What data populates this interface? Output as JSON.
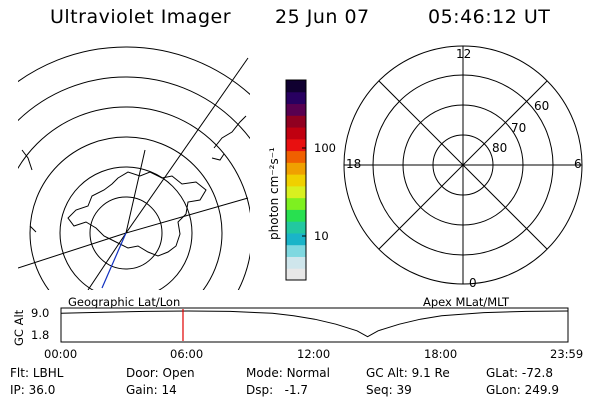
{
  "header": {
    "title": "Ultraviolet Imager",
    "date": "25 Jun 07",
    "time": "05:46:12 UT"
  },
  "colorbar": {
    "unit_label": "photon cm⁻²s⁻¹",
    "tick_100": "100",
    "tick_10": "10",
    "colors": [
      "#e8e8e8",
      "#cfe6ec",
      "#7fd8e0",
      "#1ab4c8",
      "#22c8a0",
      "#28e050",
      "#7ef020",
      "#d8f020",
      "#f0d000",
      "#f0a000",
      "#f06000",
      "#e81010",
      "#c00010",
      "#900020",
      "#580050",
      "#280060",
      "#100030"
    ]
  },
  "left_panel": {
    "label": "Geographic Lat/Lon"
  },
  "right_panel": {
    "label": "Apex  MLat/MLT",
    "mlt_labels": {
      "top": "12",
      "left": "18",
      "right": "6",
      "bottom": "0"
    },
    "mlat_labels": {
      "lat60": "60",
      "lat70": "70",
      "lat80": "80"
    }
  },
  "chart_data": {
    "type": "line",
    "title": "",
    "ylabel": "GC Alt",
    "yticks": [
      "9.0",
      "1.8"
    ],
    "ylim": [
      1.8,
      9.0
    ],
    "xticks": [
      "00:00",
      "06:00",
      "12:00",
      "18:00",
      "23:59"
    ],
    "xlim_hours": [
      0,
      23.98
    ],
    "current_time_hours": 5.77,
    "current_time_color": "#e00000",
    "series": [
      {
        "x": [
          0,
          2,
          4,
          6,
          8,
          10,
          11,
          12,
          13,
          14,
          14.5,
          15,
          16,
          17,
          18,
          20,
          22,
          23.98
        ],
        "y": [
          8.4,
          8.7,
          8.9,
          9.0,
          8.9,
          8.4,
          7.8,
          6.9,
          5.6,
          3.9,
          2.4,
          3.9,
          5.6,
          6.9,
          7.8,
          8.6,
          8.9,
          9.0
        ]
      }
    ]
  },
  "status": {
    "flt_label": "Flt:",
    "flt_value": "LBHL",
    "ip_label": "IP:",
    "ip_value": "36.0",
    "door_label": "Door:",
    "door_value": "Open",
    "gain_label": "Gain:",
    "gain_value": "14",
    "mode_label": "Mode:",
    "mode_value": "Normal",
    "dsp_label": "Dsp:",
    "dsp_value": "-1.7",
    "gcalt_label": "GC Alt:",
    "gcalt_value": "9.1 Re",
    "seq_label": "Seq:",
    "seq_value": "39",
    "glat_label": "GLat:",
    "glat_value": "-72.8",
    "glon_label": "GLon:",
    "glon_value": "249.9"
  }
}
